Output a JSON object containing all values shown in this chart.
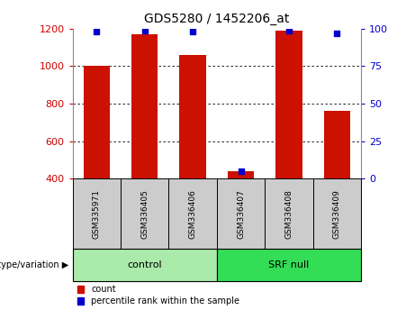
{
  "title": "GDS5280 / 1452206_at",
  "samples": [
    "GSM335971",
    "GSM336405",
    "GSM336406",
    "GSM336407",
    "GSM336408",
    "GSM336409"
  ],
  "counts": [
    1000,
    1170,
    1060,
    440,
    1190,
    760
  ],
  "percentiles": [
    98,
    99,
    98,
    5,
    99,
    97
  ],
  "groups": [
    "control",
    "control",
    "control",
    "SRF null",
    "SRF null",
    "SRF null"
  ],
  "group_labels": [
    "control",
    "SRF null"
  ],
  "group_colors": [
    "#aaeaaa",
    "#33dd55"
  ],
  "bar_color": "#cc1100",
  "dot_color": "#0000cc",
  "ylim_left": [
    400,
    1200
  ],
  "ylim_right": [
    0,
    100
  ],
  "yticks_left": [
    400,
    600,
    800,
    1000,
    1200
  ],
  "yticks_right": [
    0,
    25,
    50,
    75,
    100
  ],
  "background_color": "#ffffff",
  "grid_color": "#000000",
  "label_color_left": "#cc0000",
  "label_color_right": "#0000cc",
  "legend_count_label": "count",
  "legend_pct_label": "percentile rank within the sample",
  "genotype_label": "genotype/variation",
  "sample_box_color": "#cccccc"
}
